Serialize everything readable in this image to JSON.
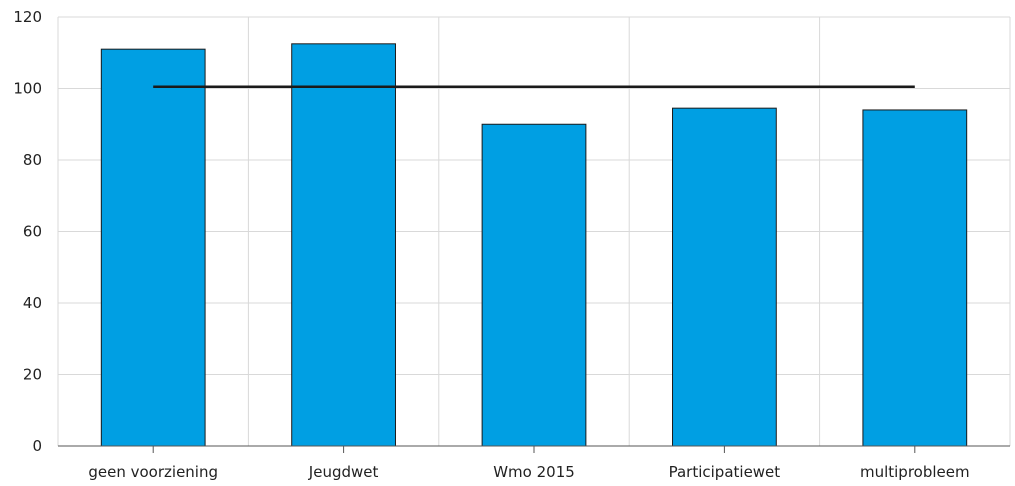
{
  "chart_data": {
    "type": "bar",
    "title": "",
    "xlabel": "",
    "ylabel": "",
    "categories": [
      "geen voorziening",
      "Jeugdwet",
      "Wmo 2015",
      "Participatiewet",
      "multiprobleem"
    ],
    "series": [
      {
        "values": [
          111,
          112.5,
          90,
          94.5,
          94
        ],
        "color": "#009FE3"
      }
    ],
    "reference_line": {
      "value": 100.5,
      "color": "#1a1a1a"
    },
    "ylim": [
      0,
      120
    ],
    "yticks": [
      0,
      20,
      40,
      60,
      80,
      100,
      120
    ],
    "grid": true,
    "legend": "none"
  }
}
